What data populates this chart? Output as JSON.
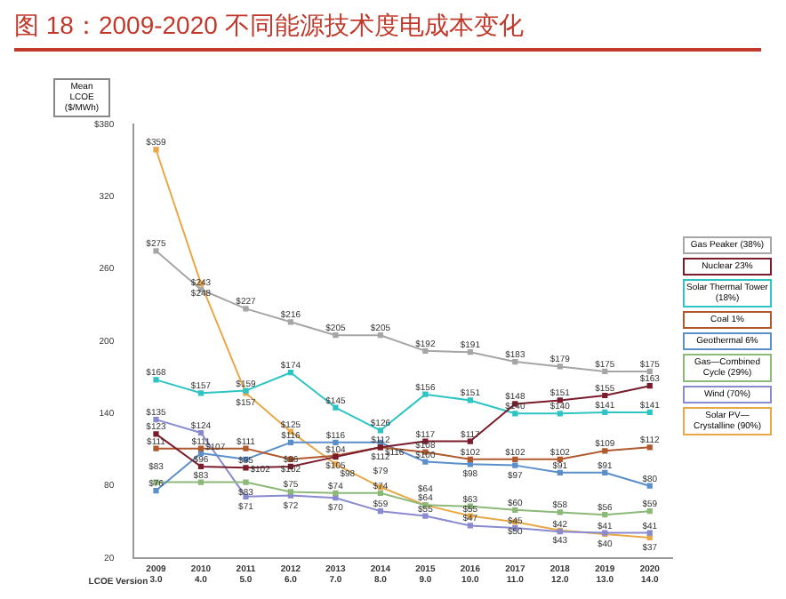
{
  "chart_data": {
    "type": "line",
    "title": "图 18：2009-2020 不同能源技术度电成本变化",
    "ylabel": "Mean LCOE ($/MWh)",
    "categories": [
      "2009\n3.0",
      "2010\n4.0",
      "2011\n5.0",
      "2012\n6.0",
      "2013\n7.0",
      "2014\n8.0",
      "2015\n9.0",
      "2016\n10.0",
      "2017\n11.0",
      "2018\n12.0",
      "2019\n13.0",
      "2020\n14.0"
    ],
    "annotations": [
      "LCOE Version"
    ],
    "ylim": [
      20,
      380
    ],
    "yticks": [
      20,
      80,
      140,
      200,
      260,
      320,
      {
        "value": 380,
        "label": "$380"
      }
    ],
    "grid": false,
    "legend": "right",
    "marker": "square",
    "line_style": "solid",
    "series": [
      {
        "name": "Gas Peaker (38%)",
        "color": "#a6a6a6",
        "values": [
          275,
          243,
          227,
          216,
          205,
          205,
          192,
          191,
          183,
          179,
          175,
          175
        ],
        "value_labels": [
          "$275",
          "$243",
          "$227",
          "$216",
          "$205",
          "$205",
          "$192",
          "$191",
          "$183",
          "$179",
          "$175",
          "$175"
        ]
      },
      {
        "name": "Nuclear 23%",
        "color": "#7b1c2c",
        "values": [
          123,
          96,
          95,
          96,
          104,
          112,
          117,
          117,
          148,
          151,
          155,
          163
        ],
        "value_labels": [
          "$123",
          "$96",
          "$95",
          "$96",
          "$104",
          "$112",
          "$117",
          "$117",
          "$148",
          "$151",
          "$155",
          "$163"
        ]
      },
      {
        "name": "Solar Thermal Tower (18%)",
        "color": "#2ec4c4",
        "values": [
          168,
          157,
          159,
          174,
          145,
          126,
          156,
          151,
          140,
          140,
          141,
          141
        ],
        "value_labels": [
          "$168",
          "$157",
          "$159",
          "$174",
          "$145",
          "$126",
          "$156",
          "$151",
          "$140",
          "$140",
          "$141",
          "$141"
        ]
      },
      {
        "name": "Coal 1%",
        "color": "#b0592e",
        "values": [
          111,
          111,
          111,
          102,
          105,
          112,
          108,
          102,
          102,
          102,
          109,
          112
        ],
        "value_labels": [
          "$111",
          "$111",
          "$111",
          "$102",
          "$105",
          "$112",
          "$108",
          "$102",
          "$102",
          "$102",
          "$109",
          "$112"
        ]
      },
      {
        "name": "Geothermal 6%",
        "color": "#5b8fc9",
        "values": [
          76,
          107,
          102,
          116,
          116,
          116,
          100,
          98,
          97,
          91,
          91,
          80
        ],
        "value_labels": [
          "$76",
          "$107",
          "$102",
          "$116",
          "$116",
          "$116",
          "$100",
          "$98",
          "$97",
          "$91",
          "$91",
          "$80"
        ]
      },
      {
        "name": "Gas—Combined Cycle (29%)",
        "color": "#8cb878",
        "values": [
          83,
          83,
          83,
          75,
          74,
          74,
          64,
          63,
          60,
          58,
          56,
          59
        ],
        "value_labels": [
          "$83",
          "$83",
          "$83",
          "$75",
          "$74",
          "$74",
          "$64",
          "$63",
          "$60",
          "$58",
          "$56",
          "$59"
        ]
      },
      {
        "name": "Wind (70%)",
        "color": "#8a8ad0",
        "values": [
          135,
          124,
          71,
          72,
          70,
          59,
          55,
          47,
          45,
          42,
          41,
          41
        ],
        "value_labels": [
          "$135",
          "$124",
          "$71",
          "$72",
          "$70",
          "$59",
          "$55",
          "$47",
          "$45",
          "$42",
          "$41",
          "$41"
        ]
      },
      {
        "name": "Solar PV—Crystalline (90%)",
        "color": "#e8a848",
        "values": [
          359,
          248,
          157,
          125,
          98,
          79,
          64,
          55,
          50,
          43,
          40,
          37
        ],
        "value_labels": [
          "$359",
          "$248",
          "$157",
          "$125",
          "$98",
          "$79",
          "$64",
          "$55",
          "$50",
          "$43",
          "$40",
          "$37"
        ]
      }
    ]
  }
}
